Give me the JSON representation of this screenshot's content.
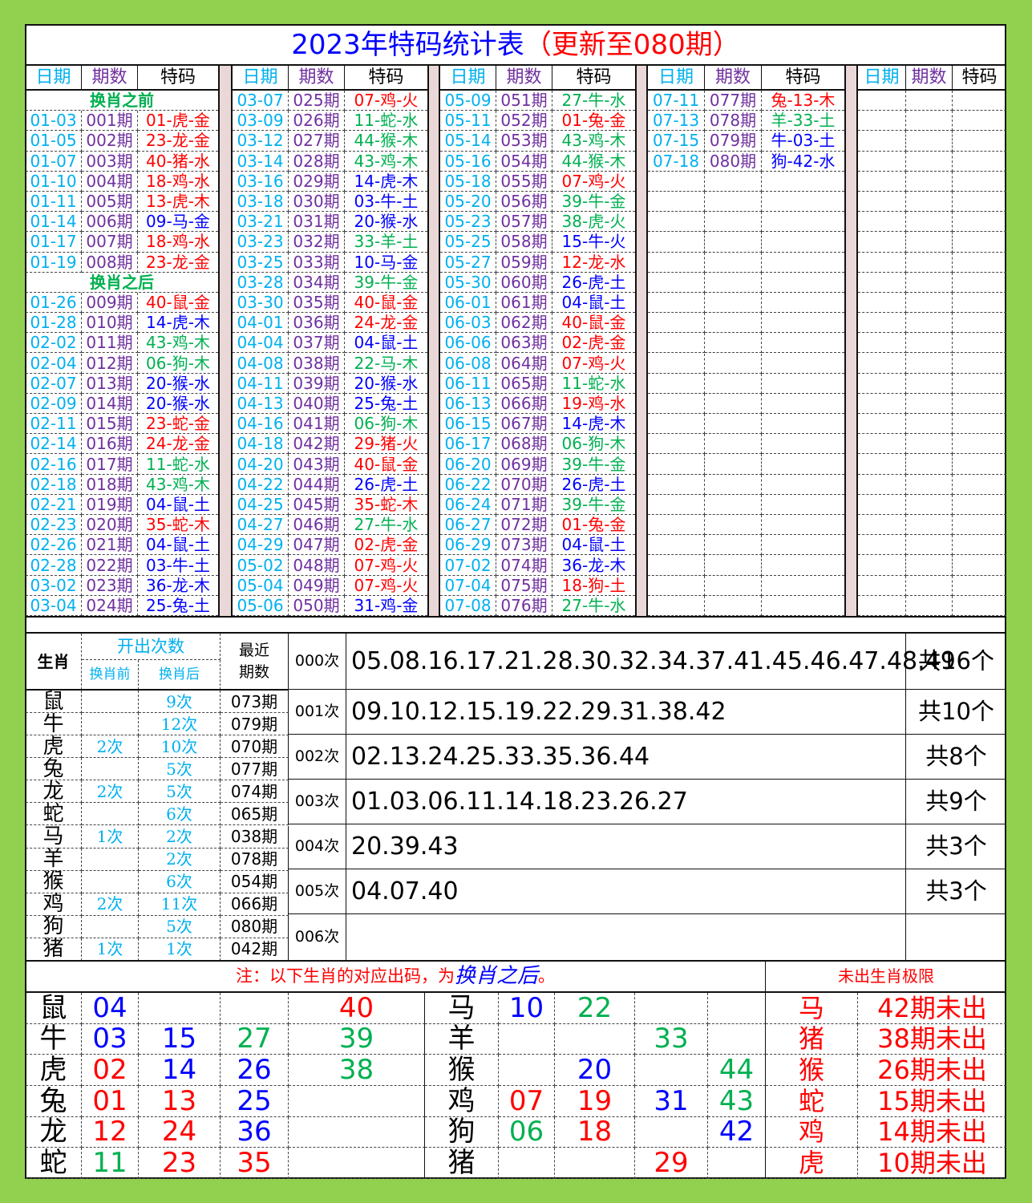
{
  "palette": {
    "r": "#ff0000",
    "g": "#00b050",
    "b": "#0000ff",
    "date": "#00b0f0",
    "period": "#7030a0",
    "count": "#00b0f0",
    "bg_green": "#92d050",
    "gap_pink": "#ead8d8"
  },
  "title": {
    "main": "2023年特码统计表",
    "update": "（更新至080期）"
  },
  "headers": {
    "date": "日期",
    "period": "期数",
    "code": "特码"
  },
  "section_labels": {
    "before": "换肖之前",
    "after": "换肖之后"
  },
  "groups": [
    [
      {
        "label": "before"
      },
      [
        "01-03",
        "001期",
        "01-虎-金",
        "r"
      ],
      [
        "01-05",
        "002期",
        "23-龙-金",
        "r"
      ],
      [
        "01-07",
        "003期",
        "40-猪-水",
        "r"
      ],
      [
        "01-10",
        "004期",
        "18-鸡-水",
        "r"
      ],
      [
        "01-11",
        "005期",
        "13-虎-木",
        "r"
      ],
      [
        "01-14",
        "006期",
        "09-马-金",
        "b"
      ],
      [
        "01-17",
        "007期",
        "18-鸡-水",
        "r"
      ],
      [
        "01-19",
        "008期",
        "23-龙-金",
        "r"
      ],
      {
        "label": "after"
      },
      [
        "01-26",
        "009期",
        "40-鼠-金",
        "r"
      ],
      [
        "01-28",
        "010期",
        "14-虎-木",
        "b"
      ],
      [
        "02-02",
        "011期",
        "43-鸡-木",
        "g"
      ],
      [
        "02-04",
        "012期",
        "06-狗-木",
        "g"
      ],
      [
        "02-07",
        "013期",
        "20-猴-水",
        "b"
      ],
      [
        "02-09",
        "014期",
        "20-猴-水",
        "b"
      ],
      [
        "02-11",
        "015期",
        "23-蛇-金",
        "r"
      ],
      [
        "02-14",
        "016期",
        "24-龙-金",
        "r"
      ],
      [
        "02-16",
        "017期",
        "11-蛇-水",
        "g"
      ],
      [
        "02-18",
        "018期",
        "43-鸡-木",
        "g"
      ],
      [
        "02-21",
        "019期",
        "04-鼠-土",
        "b"
      ],
      [
        "02-23",
        "020期",
        "35-蛇-木",
        "r"
      ],
      [
        "02-26",
        "021期",
        "04-鼠-土",
        "b"
      ],
      [
        "02-28",
        "022期",
        "03-牛-土",
        "b"
      ],
      [
        "03-02",
        "023期",
        "36-龙-木",
        "b"
      ],
      [
        "03-04",
        "024期",
        "25-兔-土",
        "b"
      ]
    ],
    [
      [
        "03-07",
        "025期",
        "07-鸡-火",
        "r"
      ],
      [
        "03-09",
        "026期",
        "11-蛇-水",
        "g"
      ],
      [
        "03-12",
        "027期",
        "44-猴-木",
        "g"
      ],
      [
        "03-14",
        "028期",
        "43-鸡-木",
        "g"
      ],
      [
        "03-16",
        "029期",
        "14-虎-木",
        "b"
      ],
      [
        "03-18",
        "030期",
        "03-牛-土",
        "b"
      ],
      [
        "03-21",
        "031期",
        "20-猴-水",
        "b"
      ],
      [
        "03-23",
        "032期",
        "33-羊-土",
        "g"
      ],
      [
        "03-25",
        "033期",
        "10-马-金",
        "b"
      ],
      [
        "03-28",
        "034期",
        "39-牛-金",
        "g"
      ],
      [
        "03-30",
        "035期",
        "40-鼠-金",
        "r"
      ],
      [
        "04-01",
        "036期",
        "24-龙-金",
        "r"
      ],
      [
        "04-04",
        "037期",
        "04-鼠-土",
        "b"
      ],
      [
        "04-08",
        "038期",
        "22-马-木",
        "g"
      ],
      [
        "04-11",
        "039期",
        "20-猴-水",
        "b"
      ],
      [
        "04-13",
        "040期",
        "25-兔-土",
        "b"
      ],
      [
        "04-16",
        "041期",
        "06-狗-木",
        "g"
      ],
      [
        "04-18",
        "042期",
        "29-猪-火",
        "r"
      ],
      [
        "04-20",
        "043期",
        "40-鼠-金",
        "r"
      ],
      [
        "04-22",
        "044期",
        "26-虎-土",
        "b"
      ],
      [
        "04-25",
        "045期",
        "35-蛇-木",
        "r"
      ],
      [
        "04-27",
        "046期",
        "27-牛-水",
        "g"
      ],
      [
        "04-29",
        "047期",
        "02-虎-金",
        "r"
      ],
      [
        "05-02",
        "048期",
        "07-鸡-火",
        "r"
      ],
      [
        "05-04",
        "049期",
        "07-鸡-火",
        "r"
      ],
      [
        "05-06",
        "050期",
        "31-鸡-金",
        "b"
      ]
    ],
    [
      [
        "05-09",
        "051期",
        "27-牛-水",
        "g"
      ],
      [
        "05-11",
        "052期",
        "01-兔-金",
        "r"
      ],
      [
        "05-14",
        "053期",
        "43-鸡-木",
        "g"
      ],
      [
        "05-16",
        "054期",
        "44-猴-木",
        "g"
      ],
      [
        "05-18",
        "055期",
        "07-鸡-火",
        "r"
      ],
      [
        "05-20",
        "056期",
        "39-牛-金",
        "g"
      ],
      [
        "05-23",
        "057期",
        "38-虎-火",
        "g"
      ],
      [
        "05-25",
        "058期",
        "15-牛-火",
        "b"
      ],
      [
        "05-27",
        "059期",
        "12-龙-水",
        "r"
      ],
      [
        "05-30",
        "060期",
        "26-虎-土",
        "b"
      ],
      [
        "06-01",
        "061期",
        "04-鼠-土",
        "b"
      ],
      [
        "06-03",
        "062期",
        "40-鼠-金",
        "r"
      ],
      [
        "06-06",
        "063期",
        "02-虎-金",
        "r"
      ],
      [
        "06-08",
        "064期",
        "07-鸡-火",
        "r"
      ],
      [
        "06-11",
        "065期",
        "11-蛇-水",
        "g"
      ],
      [
        "06-13",
        "066期",
        "19-鸡-水",
        "r"
      ],
      [
        "06-15",
        "067期",
        "14-虎-木",
        "b"
      ],
      [
        "06-17",
        "068期",
        "06-狗-木",
        "g"
      ],
      [
        "06-20",
        "069期",
        "39-牛-金",
        "g"
      ],
      [
        "06-22",
        "070期",
        "26-虎-土",
        "b"
      ],
      [
        "06-24",
        "071期",
        "39-牛-金",
        "g"
      ],
      [
        "06-27",
        "072期",
        "01-兔-金",
        "r"
      ],
      [
        "06-29",
        "073期",
        "04-鼠-土",
        "b"
      ],
      [
        "07-02",
        "074期",
        "36-龙-木",
        "b"
      ],
      [
        "07-04",
        "075期",
        "18-狗-土",
        "r"
      ],
      [
        "07-08",
        "076期",
        "27-牛-水",
        "g"
      ]
    ],
    [
      [
        "07-11",
        "077期",
        "兔-13-木",
        "r"
      ],
      [
        "07-13",
        "078期",
        "羊-33-土",
        "g"
      ],
      [
        "07-15",
        "079期",
        "牛-03-土",
        "b"
      ],
      [
        "07-18",
        "080期",
        "狗-42-水",
        "b"
      ]
    ],
    []
  ],
  "stats": {
    "header": {
      "zodiac": "生肖",
      "count_title": "开出次数",
      "before": "换肖前",
      "after": "换肖后",
      "recent_1": "最近",
      "recent_2": "期数"
    },
    "rows": [
      {
        "zodiac": "鼠",
        "before": "",
        "after": "9次",
        "recent": "073期"
      },
      {
        "zodiac": "牛",
        "before": "",
        "after": "12次",
        "recent": "079期"
      },
      {
        "zodiac": "虎",
        "before": "2次",
        "after": "10次",
        "recent": "070期"
      },
      {
        "zodiac": "兔",
        "before": "",
        "after": "5次",
        "recent": "077期"
      },
      {
        "zodiac": "龙",
        "before": "2次",
        "after": "5次",
        "recent": "074期"
      },
      {
        "zodiac": "蛇",
        "before": "",
        "after": "6次",
        "recent": "065期"
      },
      {
        "zodiac": "马",
        "before": "1次",
        "after": "2次",
        "recent": "038期"
      },
      {
        "zodiac": "羊",
        "before": "",
        "after": "2次",
        "recent": "078期"
      },
      {
        "zodiac": "猴",
        "before": "",
        "after": "6次",
        "recent": "054期"
      },
      {
        "zodiac": "鸡",
        "before": "2次",
        "after": "11次",
        "recent": "066期"
      },
      {
        "zodiac": "狗",
        "before": "",
        "after": "5次",
        "recent": "080期"
      },
      {
        "zodiac": "猪",
        "before": "1次",
        "after": "1次",
        "recent": "042期"
      }
    ]
  },
  "frequency": [
    {
      "label": "000次",
      "numbers": "05.08.16.17.21.28.30.32.34.37.41.45.46.47.48.49",
      "total": "共16个"
    },
    {
      "label": "001次",
      "numbers": "09.10.12.15.19.22.29.31.38.42",
      "total": "共10个"
    },
    {
      "label": "002次",
      "numbers": "02.13.24.25.33.35.36.44",
      "total": "共8个"
    },
    {
      "label": "003次",
      "numbers": "01.03.06.11.14.18.23.26.27",
      "total": "共9个"
    },
    {
      "label": "004次",
      "numbers": "20.39.43",
      "total": "共3个"
    },
    {
      "label": "005次",
      "numbers": "04.07.40",
      "total": "共3个"
    },
    {
      "label": "006次",
      "numbers": "",
      "total": ""
    }
  ],
  "note": {
    "prefix": "注：以下生肖的对应出码，为",
    "emphasis": "换肖之后",
    "suffix": "。",
    "limit_title": "未出生肖极限"
  },
  "mapping_left": [
    {
      "zodiac": "鼠",
      "nums": [
        [
          "04",
          "b"
        ],
        [
          "",
          ""
        ],
        [
          "",
          ""
        ],
        [
          "40",
          "r"
        ]
      ]
    },
    {
      "zodiac": "牛",
      "nums": [
        [
          "03",
          "b"
        ],
        [
          "15",
          "b"
        ],
        [
          "27",
          "g"
        ],
        [
          "39",
          "g"
        ]
      ]
    },
    {
      "zodiac": "虎",
      "nums": [
        [
          "02",
          "r"
        ],
        [
          "14",
          "b"
        ],
        [
          "26",
          "b"
        ],
        [
          "38",
          "g"
        ]
      ]
    },
    {
      "zodiac": "兔",
      "nums": [
        [
          "01",
          "r"
        ],
        [
          "13",
          "r"
        ],
        [
          "25",
          "b"
        ],
        [
          "",
          ""
        ]
      ]
    },
    {
      "zodiac": "龙",
      "nums": [
        [
          "12",
          "r"
        ],
        [
          "24",
          "r"
        ],
        [
          "36",
          "b"
        ],
        [
          "",
          ""
        ]
      ]
    },
    {
      "zodiac": "蛇",
      "nums": [
        [
          "11",
          "g"
        ],
        [
          "23",
          "r"
        ],
        [
          "35",
          "r"
        ],
        [
          "",
          ""
        ]
      ]
    }
  ],
  "mapping_right": [
    {
      "zodiac": "马",
      "nums": [
        [
          "10",
          "b"
        ],
        [
          "22",
          "g"
        ],
        [
          "",
          ""
        ],
        [
          "",
          ""
        ]
      ]
    },
    {
      "zodiac": "羊",
      "nums": [
        [
          "",
          ""
        ],
        [
          "",
          ""
        ],
        [
          "33",
          "g"
        ],
        [
          "",
          ""
        ]
      ]
    },
    {
      "zodiac": "猴",
      "nums": [
        [
          "",
          ""
        ],
        [
          "20",
          "b"
        ],
        [
          "",
          ""
        ],
        [
          "44",
          "g"
        ]
      ]
    },
    {
      "zodiac": "鸡",
      "nums": [
        [
          "07",
          "r"
        ],
        [
          "19",
          "r"
        ],
        [
          "31",
          "b"
        ],
        [
          "43",
          "g"
        ]
      ]
    },
    {
      "zodiac": "狗",
      "nums": [
        [
          "06",
          "g"
        ],
        [
          "18",
          "r"
        ],
        [
          "",
          ""
        ],
        [
          "42",
          "b"
        ]
      ]
    },
    {
      "zodiac": "猪",
      "nums": [
        [
          "",
          ""
        ],
        [
          "",
          ""
        ],
        [
          "29",
          "r"
        ],
        [
          "",
          ""
        ]
      ]
    }
  ],
  "limits": [
    {
      "zodiac": "马",
      "text": "42期未出"
    },
    {
      "zodiac": "猪",
      "text": "38期未出"
    },
    {
      "zodiac": "猴",
      "text": "26期未出"
    },
    {
      "zodiac": "蛇",
      "text": "15期未出"
    },
    {
      "zodiac": "鸡",
      "text": "14期未出"
    },
    {
      "zodiac": "虎",
      "text": "10期未出"
    }
  ]
}
